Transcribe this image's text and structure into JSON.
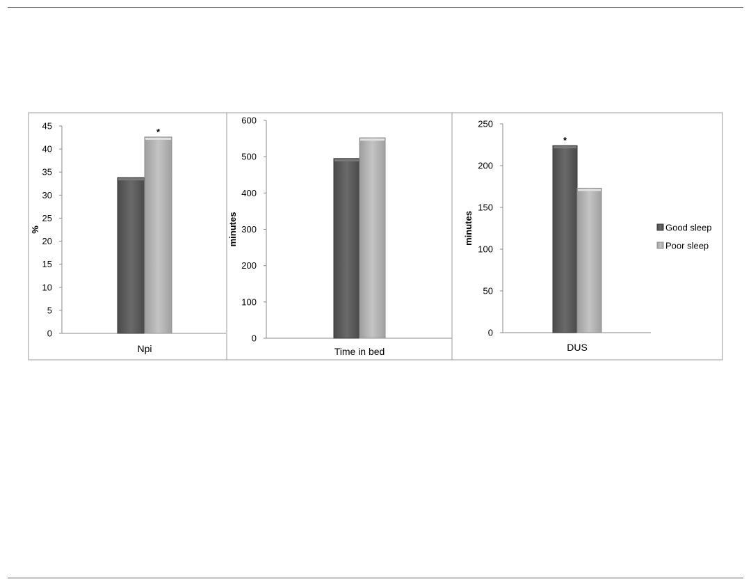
{
  "colors": {
    "good_sleep": "#5e5e5e",
    "poor_sleep": "#b5b5b5",
    "axis": "#8a8a8a",
    "frame": "#9a9a9a",
    "text": "#000000"
  },
  "legend": {
    "placement": "right",
    "items": [
      {
        "label": "Good sleep",
        "color": "#5e5e5e"
      },
      {
        "label": "Poor sleep",
        "color": "#b5b5b5"
      }
    ]
  },
  "chart_data": [
    {
      "type": "bar",
      "categories": [
        "Npi"
      ],
      "series": [
        {
          "name": "Good sleep",
          "values": [
            33.8
          ]
        },
        {
          "name": "Poor sleep",
          "values": [
            42.6
          ]
        }
      ],
      "ylabel": "%",
      "xlabel": "",
      "ylim": [
        0,
        45
      ],
      "yticks": [
        0,
        5,
        10,
        15,
        20,
        25,
        30,
        35,
        40,
        45
      ],
      "annotations": [
        {
          "series": "Poor sleep",
          "text": "*"
        }
      ],
      "grid": false
    },
    {
      "type": "bar",
      "categories": [
        "Time in bed"
      ],
      "series": [
        {
          "name": "Good sleep",
          "values": [
            495
          ]
        },
        {
          "name": "Poor sleep",
          "values": [
            552
          ]
        }
      ],
      "ylabel": "minutes",
      "xlabel": "",
      "ylim": [
        0,
        600
      ],
      "yticks": [
        0,
        100,
        200,
        300,
        400,
        500,
        600
      ],
      "annotations": [],
      "grid": false
    },
    {
      "type": "bar",
      "categories": [
        "DUS"
      ],
      "series": [
        {
          "name": "Good sleep",
          "values": [
            224
          ]
        },
        {
          "name": "Poor sleep",
          "values": [
            173
          ]
        }
      ],
      "ylabel": "minutes",
      "xlabel": "",
      "ylim": [
        0,
        250
      ],
      "yticks": [
        0,
        50,
        100,
        150,
        200,
        250
      ],
      "annotations": [
        {
          "series": "Good sleep",
          "text": "*"
        }
      ],
      "grid": false
    }
  ]
}
